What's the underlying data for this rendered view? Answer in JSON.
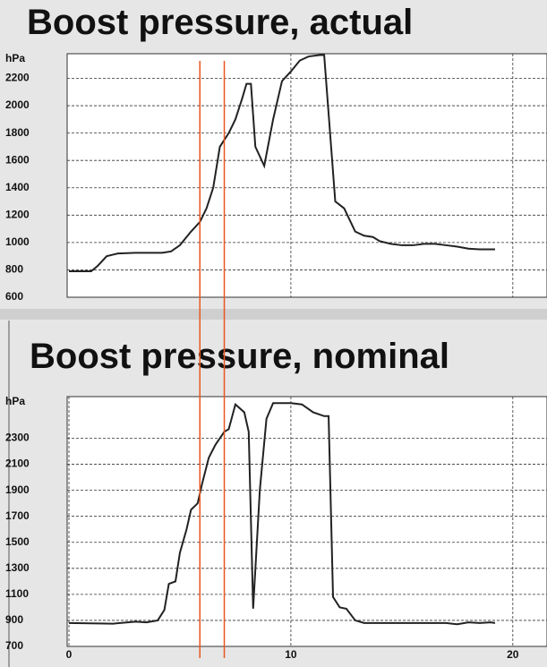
{
  "chart_data": [
    {
      "type": "line",
      "title": "Boost pressure, actual",
      "ylabel": "hPa",
      "x": [
        0,
        1.0,
        1.3,
        1.7,
        2.2,
        3,
        4.2,
        4.6,
        5,
        5.5,
        5.9,
        6.2,
        6.5,
        6.8,
        7.2,
        7.5,
        7.8,
        8.0,
        8.2,
        8.4,
        8.8,
        9.2,
        9.6,
        10,
        10.4,
        10.8,
        11.3,
        11.5,
        12,
        12.4,
        12.9,
        13.3,
        13.7,
        14,
        14.5,
        15,
        15.5,
        16,
        16.5,
        17,
        17.5,
        18,
        18.5,
        19,
        19.2
      ],
      "series": [
        {
          "name": "Boost pressure, actual",
          "color": "#222222",
          "values": [
            790,
            790,
            830,
            900,
            920,
            925,
            925,
            935,
            980,
            1080,
            1150,
            1250,
            1400,
            1700,
            1800,
            1900,
            2050,
            2160,
            2160,
            1700,
            1560,
            1900,
            2180,
            2250,
            2330,
            2360,
            2370,
            2370,
            1300,
            1250,
            1080,
            1050,
            1040,
            1010,
            990,
            980,
            980,
            990,
            990,
            980,
            970,
            955,
            950,
            950,
            950
          ]
        }
      ],
      "xlim": [
        0,
        21.5
      ],
      "xticks": [
        10,
        20
      ],
      "show_xtick_labels": false,
      "ylim": [
        600,
        2380
      ],
      "yticks": [
        600,
        800,
        1000,
        1200,
        1400,
        1600,
        1800,
        2000,
        2200
      ],
      "grid": true
    },
    {
      "type": "line",
      "title": "Boost pressure, nominal",
      "ylabel": "hPa",
      "x": [
        0,
        2,
        3,
        3.5,
        4,
        4.3,
        4.5,
        4.8,
        5,
        5.3,
        5.5,
        5.8,
        6,
        6.3,
        6.6,
        7,
        7.2,
        7.5,
        7.9,
        8.1,
        8.3,
        8.6,
        8.9,
        9.2,
        10,
        10.5,
        11,
        11.5,
        11.7,
        11.9,
        12.2,
        12.5,
        12.9,
        13.3,
        14,
        15,
        16,
        17,
        17.5,
        18,
        18.5,
        19,
        19.2
      ],
      "series": [
        {
          "name": "Boost pressure, nominal",
          "color": "#222222",
          "values": [
            880,
            875,
            890,
            885,
            900,
            980,
            1180,
            1200,
            1420,
            1600,
            1750,
            1800,
            1950,
            2150,
            2250,
            2350,
            2370,
            2560,
            2500,
            2350,
            990,
            1900,
            2450,
            2570,
            2570,
            2560,
            2500,
            2470,
            2470,
            1080,
            1000,
            990,
            900,
            880,
            880,
            880,
            880,
            880,
            870,
            885,
            880,
            885,
            880
          ]
        }
      ],
      "xlim": [
        0,
        21.5
      ],
      "xticks": [
        0,
        10,
        20
      ],
      "show_xtick_labels": true,
      "ylim": [
        700,
        2620
      ],
      "yticks": [
        700,
        900,
        1100,
        1300,
        1500,
        1700,
        1900,
        2100,
        2300
      ],
      "grid": true
    }
  ],
  "cursor_lines": {
    "x": [
      5.9,
      7.0
    ],
    "color": "#e8561e"
  }
}
